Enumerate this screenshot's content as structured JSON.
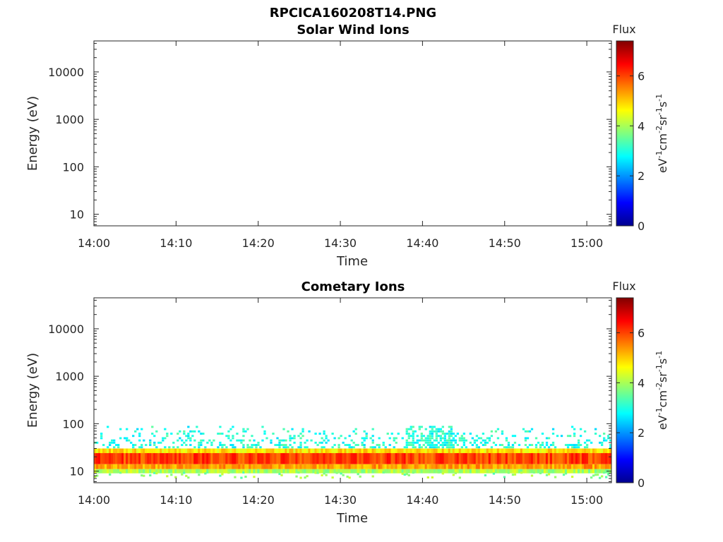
{
  "figure": {
    "filename": "RPCICA160208T14.PNG"
  },
  "colorbar": {
    "title": "Flux",
    "ticks": [
      "0",
      "2",
      "4",
      "6"
    ],
    "range": [
      0,
      7.4
    ],
    "unit_parts": {
      "p1": "eV",
      "e1": "-1",
      "p2": "cm",
      "e2": "-2",
      "p3": "sr",
      "e3": "-1",
      "p4": "s",
      "e4": "-1"
    },
    "colormap": "jet"
  },
  "chart_data": [
    {
      "type": "heatmap",
      "title": "Solar Wind Ions",
      "xlabel": "Time",
      "ylabel": "Energy (eV)",
      "xlim": [
        "14:00",
        "15:03"
      ],
      "ylim": [
        5.7,
        45000
      ],
      "yscale": "log",
      "x_ticks": [
        "14:00",
        "14:10",
        "14:20",
        "14:30",
        "14:40",
        "14:50",
        "15:00"
      ],
      "y_ticks": [
        "10",
        "100",
        "1000",
        "10000"
      ],
      "z_label": "Flux",
      "z_range": [
        0,
        7.4
      ],
      "bands": []
    },
    {
      "type": "heatmap",
      "title": "Cometary Ions",
      "xlabel": "Time",
      "ylabel": "Energy (eV)",
      "xlim": [
        "14:00",
        "15:03"
      ],
      "ylim": [
        5.7,
        45000
      ],
      "yscale": "log",
      "x_ticks": [
        "14:00",
        "14:10",
        "14:20",
        "14:30",
        "14:40",
        "14:50",
        "15:00"
      ],
      "y_ticks": [
        "10",
        "100",
        "1000",
        "10000"
      ],
      "z_label": "Flux",
      "z_range": [
        0,
        7.4
      ],
      "bands": [
        {
          "energy_range_eV": [
            14,
            24
          ],
          "flux_approx": 6.0
        },
        {
          "energy_range_eV": [
            11,
            14
          ],
          "flux_approx": 5.3
        },
        {
          "energy_range_eV": [
            24,
            30
          ],
          "flux_approx": 4.8
        },
        {
          "energy_range_eV": [
            9,
            11
          ],
          "flux_approx": 4.0
        },
        {
          "energy_range_eV": [
            30,
            90
          ],
          "flux_approx": 3.0,
          "sparse": true
        }
      ],
      "features": [
        {
          "time_range": [
            "14:38",
            "14:44"
          ],
          "energy_range_eV": [
            30,
            80
          ],
          "flux_approx": 3.2
        }
      ]
    }
  ]
}
